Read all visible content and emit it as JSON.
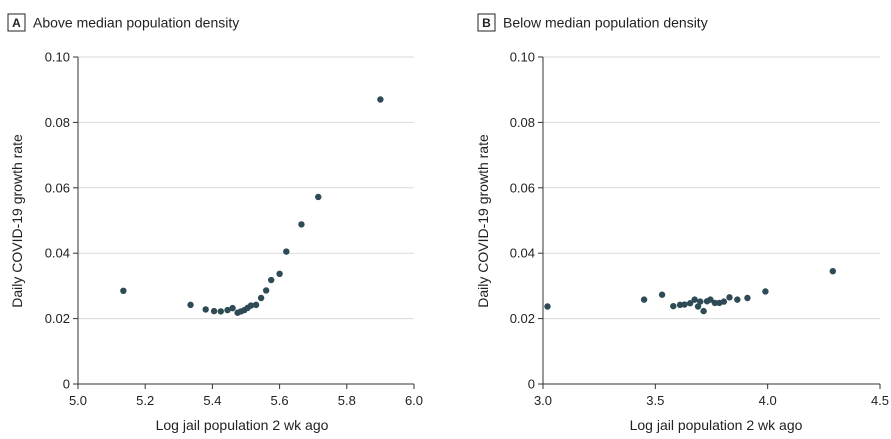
{
  "colors": {
    "point": "#2e4a55",
    "grid": "#d9d9d9",
    "axis": "#333333",
    "text": "#222222"
  },
  "chart_data": [
    {
      "type": "scatter",
      "panel_label": "A",
      "title": "Above median population density",
      "xlabel": "Log jail population 2 wk ago",
      "ylabel": "Daily COVID-19 growth rate",
      "xlim": [
        5.0,
        6.0
      ],
      "ylim": [
        0,
        0.1
      ],
      "x_ticks": [
        "5.0",
        "5.2",
        "5.4",
        "5.6",
        "5.8",
        "6.0"
      ],
      "y_ticks": [
        "0",
        "0.02",
        "0.04",
        "0.06",
        "0.08",
        "0.10"
      ],
      "grid": "horizontal",
      "x": [
        5.135,
        5.335,
        5.38,
        5.405,
        5.425,
        5.445,
        5.46,
        5.475,
        5.485,
        5.495,
        5.505,
        5.515,
        5.53,
        5.545,
        5.56,
        5.575,
        5.6,
        5.62,
        5.665,
        5.715,
        5.9
      ],
      "y": [
        0.0285,
        0.0242,
        0.0228,
        0.0223,
        0.0222,
        0.0226,
        0.0232,
        0.0218,
        0.0222,
        0.0226,
        0.0233,
        0.024,
        0.0242,
        0.0263,
        0.0286,
        0.0318,
        0.0337,
        0.0405,
        0.0488,
        0.0572,
        0.087
      ]
    },
    {
      "type": "scatter",
      "panel_label": "B",
      "title": "Below median population density",
      "xlabel": "Log jail population 2 wk ago",
      "ylabel": "Daily COVID-19 growth rate",
      "xlim": [
        3.0,
        4.5
      ],
      "ylim": [
        0,
        0.1
      ],
      "x_ticks": [
        "3.0",
        "3.5",
        "4.0",
        "4.5"
      ],
      "y_ticks": [
        "0",
        "0.02",
        "0.04",
        "0.06",
        "0.08",
        "0.10"
      ],
      "grid": "horizontal",
      "x": [
        3.02,
        3.45,
        3.53,
        3.58,
        3.61,
        3.63,
        3.655,
        3.675,
        3.69,
        3.7,
        3.715,
        3.73,
        3.745,
        3.765,
        3.785,
        3.805,
        3.83,
        3.865,
        3.91,
        3.99,
        4.29
      ],
      "y": [
        0.0237,
        0.0258,
        0.0273,
        0.0238,
        0.0242,
        0.0243,
        0.0247,
        0.0258,
        0.0237,
        0.0252,
        0.0223,
        0.0253,
        0.0258,
        0.0248,
        0.0248,
        0.0252,
        0.0265,
        0.0258,
        0.0263,
        0.0283,
        0.0345
      ]
    }
  ]
}
